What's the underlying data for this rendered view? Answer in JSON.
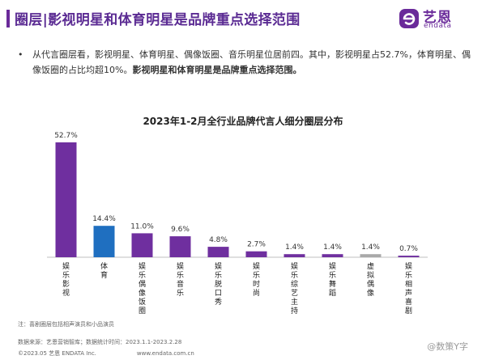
{
  "header": {
    "title": "圈层|影视明星和体育明星是品牌重点选择范围",
    "brand_cn": "艺恩",
    "brand_en": "endata"
  },
  "summary": {
    "bullet": "•",
    "text": "从代言圈层看，影视明星、体育明星、偶像饭圈、音乐明星位居前四。其中，影视明星占52.7%，体育明星、偶像饭圈的占比均超10%。",
    "emphasis": "影视明星和体育明星是品牌重点选择范围。"
  },
  "colors": {
    "purple": "#6f2f9f",
    "blue": "#1f6fc0",
    "gray": "#a9a9a9",
    "title": "#5b2b93"
  },
  "chart_data": {
    "type": "bar",
    "title": "2023年1-2月全行业品牌代言人细分圈层分布",
    "categories": [
      "娱乐影视",
      "体育",
      "娱乐偶像饭圈",
      "娱乐音乐",
      "娱乐脱口秀",
      "娱乐时尚",
      "娱乐综艺主持",
      "娱乐舞蹈",
      "虚拟偶像",
      "娱乐相声喜剧"
    ],
    "values": [
      52.7,
      14.4,
      11.0,
      9.6,
      4.8,
      2.7,
      1.4,
      1.4,
      1.4,
      0.7
    ],
    "value_labels": [
      "52.7%",
      "14.4%",
      "11.0%",
      "9.6%",
      "4.8%",
      "2.7%",
      "1.4%",
      "1.4%",
      "1.4%",
      "0.7%"
    ],
    "bar_colors": [
      "#6f2f9f",
      "#1f6fc0",
      "#6f2f9f",
      "#6f2f9f",
      "#6f2f9f",
      "#6f2f9f",
      "#6f2f9f",
      "#6f2f9f",
      "#a9a9a9",
      "#6f2f9f"
    ],
    "ylim": [
      0,
      60
    ],
    "grid": false,
    "legend": "none"
  },
  "footer": {
    "note": "注：喜剧圈层包括相声演员和小品演员",
    "source": "数据来源：艺恩营销智库；数据统计时间：2023.1.1-2023.2.28",
    "copyright": "©2023.05 艺恩 ENDATA Inc.",
    "website": "www.endata.com.cn",
    "watermark": "@数策Y字"
  }
}
